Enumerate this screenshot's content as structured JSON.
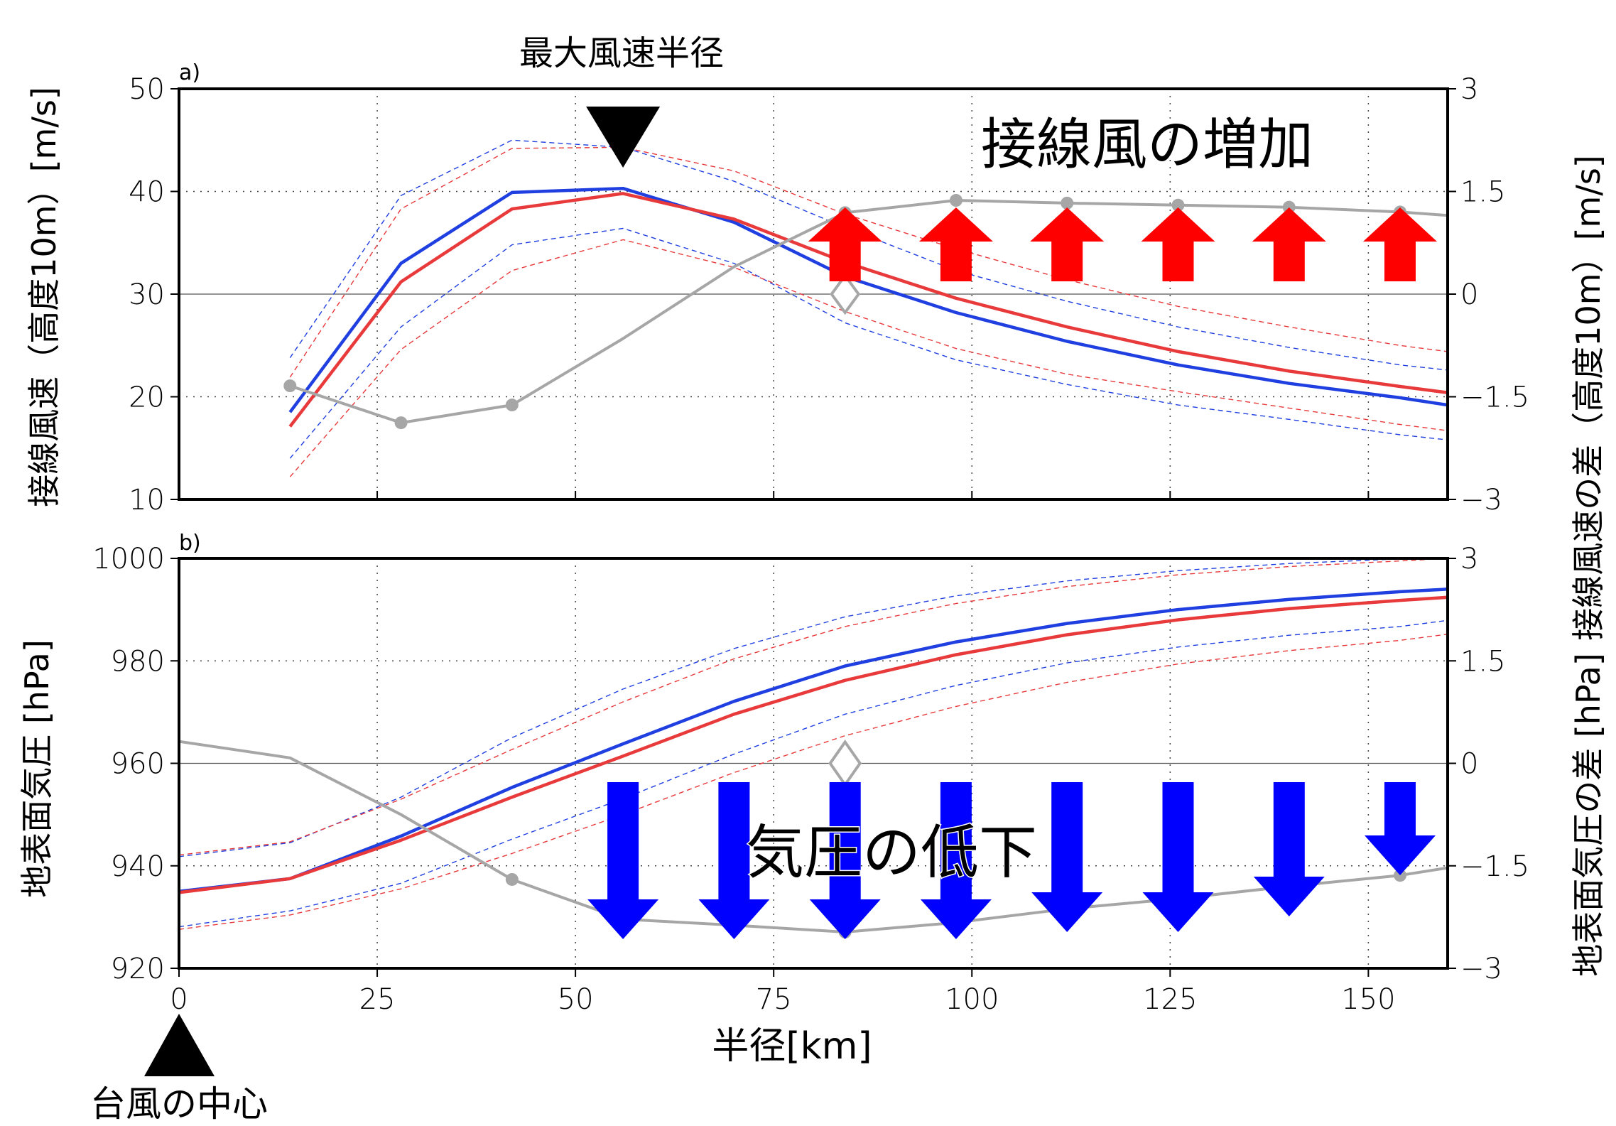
{
  "colors": {
    "blue": "#1f3fe0",
    "red": "#e8393b",
    "gray": "#a6a6a6",
    "up_arrow": "#ff0000",
    "down_arrow": "#0000ff",
    "black": "#000000"
  },
  "annotations": {
    "rmw_label": "最大風速半径",
    "center_label": "台風の中心",
    "wind_increase": "接線風の増加",
    "pressure_drop": "気圧の低下"
  },
  "chart_data": [
    {
      "type": "line",
      "panel_label": "a)",
      "ylabel_left": "接線風速（高度10m）[m/s]",
      "ylabel_right": "接線風速の差（高度10m）[m/s]",
      "ylim": [
        10,
        50
      ],
      "yticks": [
        10,
        20,
        30,
        40,
        50
      ],
      "ylim_right": [
        -3,
        3
      ],
      "yticks_right": [
        "−3",
        "−1.5",
        "0",
        "1.5",
        "3"
      ],
      "yticks_right_values": [
        -3,
        -1.5,
        0,
        1.5,
        3
      ],
      "xlim": [
        0,
        160
      ],
      "grid": true,
      "series": [
        {
          "color": "blue",
          "style": "solid",
          "x": [
            14,
            28,
            42,
            56,
            70,
            84,
            98,
            112,
            126,
            140,
            154,
            160
          ],
          "y": [
            18.5,
            33,
            39.9,
            40.3,
            37,
            31.7,
            28.2,
            25.4,
            23.1,
            21.3,
            19.9,
            19.2
          ]
        },
        {
          "color": "red",
          "style": "solid",
          "x": [
            14,
            28,
            42,
            56,
            70,
            84,
            98,
            112,
            126,
            140,
            154,
            160
          ],
          "y": [
            17.1,
            31.2,
            38.3,
            39.8,
            37.3,
            33.1,
            29.6,
            26.8,
            24.4,
            22.5,
            21,
            20.4
          ]
        },
        {
          "color": "blue",
          "style": "dashed",
          "x": [
            14,
            28,
            42,
            56,
            70,
            84,
            98,
            112,
            126,
            140,
            154,
            160
          ],
          "y": [
            23.8,
            39.6,
            45,
            44.3,
            41,
            36.5,
            32.3,
            29.3,
            26.8,
            24.8,
            23.1,
            22.6
          ]
        },
        {
          "color": "blue",
          "style": "dashed",
          "x": [
            14,
            28,
            42,
            56,
            70,
            84,
            98,
            112,
            126,
            140,
            154,
            160
          ],
          "y": [
            14,
            26.8,
            34.8,
            36.4,
            33,
            27.2,
            23.6,
            21.2,
            19.2,
            17.8,
            16.3,
            15.8
          ]
        },
        {
          "color": "red",
          "style": "dashed",
          "x": [
            14,
            28,
            42,
            56,
            70,
            84,
            98,
            112,
            126,
            140,
            154,
            160
          ],
          "y": [
            21.9,
            38.3,
            44.2,
            44.3,
            42,
            37.8,
            34.4,
            31.4,
            28.8,
            26.8,
            25,
            24.4
          ]
        },
        {
          "color": "red",
          "style": "dashed",
          "x": [
            14,
            28,
            42,
            56,
            70,
            84,
            98,
            112,
            126,
            140,
            154,
            160
          ],
          "y": [
            12.2,
            24.6,
            32.3,
            35.3,
            32.6,
            28.3,
            24.7,
            22.2,
            20.5,
            18.9,
            17.3,
            16.7
          ]
        },
        {
          "color": "gray",
          "style": "solid",
          "axis": "right",
          "markers": [
            0,
            1,
            2,
            5,
            6,
            7,
            8,
            9,
            10
          ],
          "x": [
            14,
            28,
            42,
            56,
            70,
            84,
            98,
            112,
            126,
            140,
            154,
            160
          ],
          "y": [
            -1.34,
            -1.88,
            -1.62,
            -0.65,
            0.4,
            1.19,
            1.37,
            1.33,
            1.3,
            1.27,
            1.2,
            1.15
          ]
        }
      ],
      "rmw_marker_x": 56,
      "difference_marker": {
        "x": 84,
        "y": 30
      },
      "up_arrows_x": [
        84,
        98,
        112,
        126,
        140,
        154
      ]
    },
    {
      "type": "line",
      "panel_label": "b)",
      "xlabel": "半径[km]",
      "ylabel_left": "地表面気圧 [hPa]",
      "ylabel_right": "地表面気圧の差 [hPa]",
      "ylim": [
        920,
        1000
      ],
      "yticks": [
        920,
        940,
        960,
        980,
        1000
      ],
      "ylim_right": [
        -3,
        3
      ],
      "yticks_right": [
        "−3",
        "−1.5",
        "0",
        "1.5",
        "3"
      ],
      "yticks_right_values": [
        -3,
        -1.5,
        0,
        1.5,
        3
      ],
      "xlim": [
        0,
        160
      ],
      "xticks": [
        0,
        25,
        50,
        75,
        100,
        125,
        150
      ],
      "grid": true,
      "series": [
        {
          "color": "blue",
          "style": "solid",
          "x": [
            0,
            14,
            28,
            42,
            56,
            70,
            84,
            98,
            112,
            126,
            140,
            154,
            160
          ],
          "y": [
            935,
            937.5,
            945.8,
            955.3,
            963.8,
            972.1,
            979,
            983.7,
            987.3,
            990,
            992,
            993.5,
            994
          ]
        },
        {
          "color": "red",
          "style": "solid",
          "x": [
            0,
            14,
            28,
            42,
            56,
            70,
            84,
            98,
            112,
            126,
            140,
            154,
            160
          ],
          "y": [
            934.8,
            937.5,
            945,
            953.4,
            961.4,
            969.6,
            976.2,
            981.2,
            985.1,
            988,
            990.2,
            991.8,
            992.4
          ]
        },
        {
          "color": "blue",
          "style": "dashed",
          "x": [
            0,
            14,
            28,
            42,
            56,
            70,
            84,
            98,
            112,
            126,
            140,
            154,
            160
          ],
          "y": [
            941.8,
            944.5,
            953.4,
            965,
            974.5,
            982.4,
            988.6,
            992.7,
            995.6,
            997.6,
            999,
            999.9,
            1000.2
          ]
        },
        {
          "color": "blue",
          "style": "dashed",
          "x": [
            0,
            14,
            28,
            42,
            56,
            70,
            84,
            98,
            112,
            126,
            140,
            154,
            160
          ],
          "y": [
            928.1,
            931.2,
            936.6,
            945.2,
            953.1,
            961.8,
            969.6,
            975.2,
            979.6,
            982.7,
            985,
            986.7,
            987.9
          ]
        },
        {
          "color": "red",
          "style": "dashed",
          "x": [
            0,
            14,
            28,
            42,
            56,
            70,
            84,
            98,
            112,
            126,
            140,
            154,
            160
          ],
          "y": [
            942.1,
            944.7,
            953,
            962.7,
            972,
            980.4,
            986.7,
            991.2,
            994.5,
            996.8,
            998.4,
            999.5,
            1000
          ]
        },
        {
          "color": "red",
          "style": "dashed",
          "x": [
            0,
            14,
            28,
            42,
            56,
            70,
            84,
            98,
            112,
            126,
            140,
            154,
            160
          ],
          "y": [
            927.6,
            930.4,
            935.5,
            942.4,
            950,
            958.2,
            965.4,
            971.1,
            975.8,
            979.4,
            982,
            984,
            985.2
          ]
        },
        {
          "color": "gray",
          "style": "solid",
          "axis": "right",
          "markers": [
            3,
            4,
            5,
            6,
            7,
            8,
            9,
            10,
            11
          ],
          "x": [
            0,
            14,
            28,
            42,
            56,
            70,
            84,
            98,
            112,
            126,
            140,
            154,
            160
          ],
          "y": [
            0.32,
            0.08,
            -0.75,
            -1.7,
            -2.28,
            -2.37,
            -2.47,
            -2.33,
            -2.13,
            -1.98,
            -1.8,
            -1.64,
            -1.53
          ]
        }
      ],
      "difference_marker": {
        "x": 84,
        "y": 960
      },
      "down_arrows_x": [
        56,
        70,
        84,
        98,
        112,
        126,
        140,
        154
      ]
    }
  ]
}
